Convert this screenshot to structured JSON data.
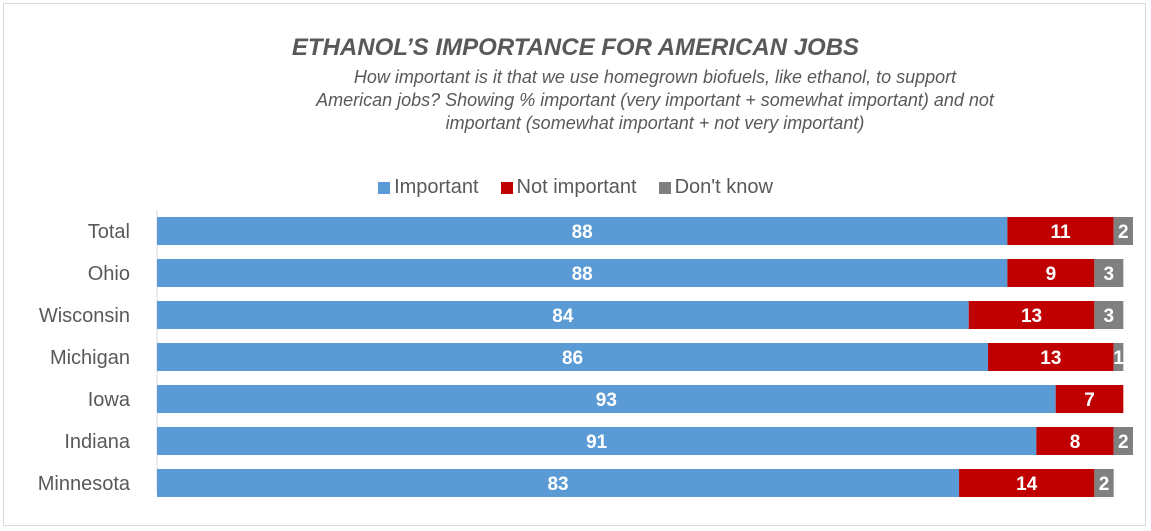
{
  "chart_data": {
    "type": "bar",
    "orientation": "horizontal",
    "stacked": true,
    "title": "ETHANOL’S IMPORTANCE FOR AMERICAN JOBS",
    "subtitle_lines": [
      "How important is it that we use homegrown biofuels, like ethanol, to support",
      "American jobs? Showing % important (very important + somewhat important) and not",
      "important (somewhat important + not very important)"
    ],
    "categories": [
      "Total",
      "Ohio",
      "Wisconsin",
      "Michigan",
      "Iowa",
      "Indiana",
      "Minnesota"
    ],
    "series": [
      {
        "name": "Important",
        "color": "#5b9bd5",
        "values": [
          88,
          88,
          84,
          86,
          93,
          91,
          83
        ]
      },
      {
        "name": "Not important",
        "color": "#c00000",
        "values": [
          11,
          9,
          13,
          13,
          7,
          8,
          14
        ]
      },
      {
        "name": "Don't know",
        "color": "#808080",
        "values": [
          2,
          3,
          3,
          1,
          null,
          2,
          2
        ]
      }
    ],
    "xlim": [
      0,
      101
    ],
    "legend_position": "top",
    "grid": false,
    "data_labels": true
  }
}
